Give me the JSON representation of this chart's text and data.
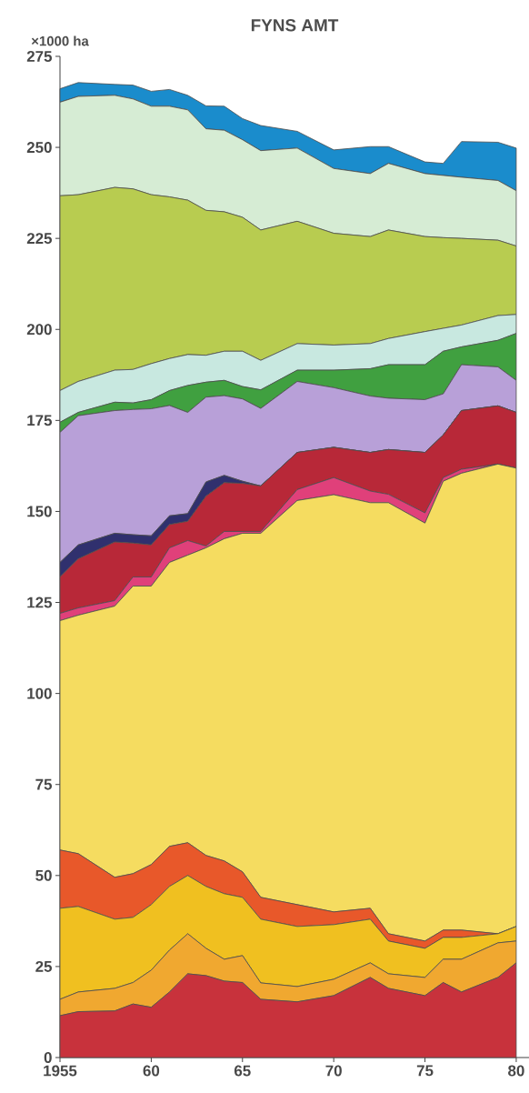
{
  "chart_data": {
    "type": "area",
    "title": "FYNS AMT",
    "ylabel": "×1000 ha",
    "stacked": true,
    "x": [
      1955,
      1956,
      1958,
      1959,
      1960,
      1961,
      1962,
      1963,
      1964,
      1965,
      1966,
      1968,
      1970,
      1972,
      1973,
      1975,
      1976,
      1977,
      1979,
      1980
    ],
    "xlim": [
      1955,
      1980.7
    ],
    "xticks": [
      {
        "value": 1955,
        "label": "1955"
      },
      {
        "value": 1960,
        "label": "60"
      },
      {
        "value": 1965,
        "label": "65"
      },
      {
        "value": 1970,
        "label": "70"
      },
      {
        "value": 1975,
        "label": "75"
      },
      {
        "value": 1980,
        "label": "80"
      }
    ],
    "ylim": [
      0,
      275
    ],
    "yticks": [
      0,
      25,
      50,
      75,
      100,
      125,
      150,
      175,
      200,
      225,
      250,
      275
    ],
    "series": [
      {
        "color": "#c8323c",
        "values": [
          11.5,
          12.6,
          12.8,
          14.7,
          13.8,
          18,
          23,
          22.5,
          21,
          20.6,
          16,
          15.3,
          17,
          22,
          19,
          17,
          20.6,
          18,
          22,
          26
        ]
      },
      {
        "color": "#f0a830",
        "values": [
          4.5,
          5.4,
          6.2,
          5.9,
          10.2,
          11.5,
          11,
          7.5,
          6,
          7.4,
          4.5,
          4.2,
          4.5,
          4,
          4,
          5,
          6.4,
          9,
          9.5,
          6
        ]
      },
      {
        "color": "#f0c020",
        "values": [
          25,
          23.5,
          19,
          17.9,
          18,
          17.5,
          16,
          17,
          18,
          16,
          17.5,
          16.5,
          15,
          12,
          9,
          8,
          6,
          6,
          2.5,
          4
        ]
      },
      {
        "color": "#e8582a",
        "values": [
          16,
          14.5,
          11.5,
          12,
          11,
          11,
          9,
          8.5,
          9,
          7,
          6,
          6,
          3.5,
          3,
          2,
          2,
          2,
          2,
          0,
          0
        ]
      },
      {
        "color": "#f5dc60",
        "values": [
          63,
          65.5,
          74.5,
          79,
          76.5,
          78,
          79,
          84.5,
          88.5,
          93,
          100,
          111,
          114.6,
          111.4,
          118.4,
          114.8,
          123.3,
          125.5,
          129,
          125.9
        ]
      },
      {
        "color": "#e0407a",
        "values": [
          2,
          2,
          1.5,
          2.5,
          2.5,
          4,
          4,
          0.5,
          2,
          0.5,
          0.5,
          3,
          4.7,
          3.2,
          2.3,
          2.8,
          1,
          1.1,
          0,
          0
        ]
      },
      {
        "color": "#b82838",
        "values": [
          10,
          13.5,
          16.1,
          9.3,
          8.8,
          6.4,
          5.3,
          13.7,
          13.4,
          13.2,
          12.5,
          10.2,
          8.3,
          10.6,
          12.3,
          16.6,
          11.7,
          16.1,
          16,
          15.3
        ]
      },
      {
        "color": "#30306e",
        "values": [
          4,
          3.8,
          2.4,
          2.3,
          2.5,
          2.4,
          2.1,
          3.9,
          2,
          0.6,
          0,
          0,
          0,
          0,
          0,
          0,
          0,
          0,
          0,
          0
        ]
      },
      {
        "color": "#b8a0d8",
        "values": [
          35.7,
          35.5,
          33.7,
          34.4,
          34.9,
          30.3,
          27.8,
          23.3,
          21.9,
          22.6,
          21.3,
          19.5,
          16.4,
          15.5,
          14.1,
          14.5,
          11.3,
          12.6,
          10.7,
          8.8
        ]
      },
      {
        "color": "#40a040",
        "values": [
          2.8,
          0.9,
          2.3,
          1.8,
          2.5,
          4.1,
          7.4,
          4.1,
          4.2,
          3.4,
          5.1,
          3.1,
          4.8,
          7.5,
          9.2,
          9.6,
          11.7,
          4.9,
          7.3,
          12.9
        ]
      },
      {
        "color": "#c8e8e0",
        "values": [
          8.7,
          8.5,
          8.8,
          9.2,
          9.9,
          8.8,
          8.5,
          7.4,
          8,
          9.7,
          8.1,
          7.3,
          6.9,
          6.9,
          7.2,
          9.1,
          6.3,
          6,
          6.8,
          5.2
        ]
      },
      {
        "color": "#b8cc50",
        "values": [
          53.5,
          51.3,
          50.2,
          49.6,
          46.4,
          44.4,
          42.4,
          39.8,
          38.3,
          36.8,
          35.8,
          33.6,
          30.7,
          29.4,
          29.8,
          26.1,
          24.9,
          23.8,
          20.7,
          18.8
        ]
      },
      {
        "color": "#d6ecd4",
        "values": [
          25.7,
          27,
          25.3,
          24.7,
          24.3,
          24.9,
          24.8,
          22.4,
          22.4,
          21.3,
          21.8,
          20.1,
          17.8,
          17.3,
          18.3,
          17.3,
          17.1,
          16.8,
          16.4,
          15.2
        ]
      },
      {
        "color": "#1a8ccc",
        "values": [
          3.7,
          3.8,
          3,
          3.8,
          4.1,
          4.6,
          4,
          6.3,
          6.6,
          5.8,
          6.9,
          4.6,
          5.1,
          7.4,
          4.6,
          3.2,
          3.3,
          9.8,
          10.5,
          11.7
        ]
      }
    ]
  }
}
